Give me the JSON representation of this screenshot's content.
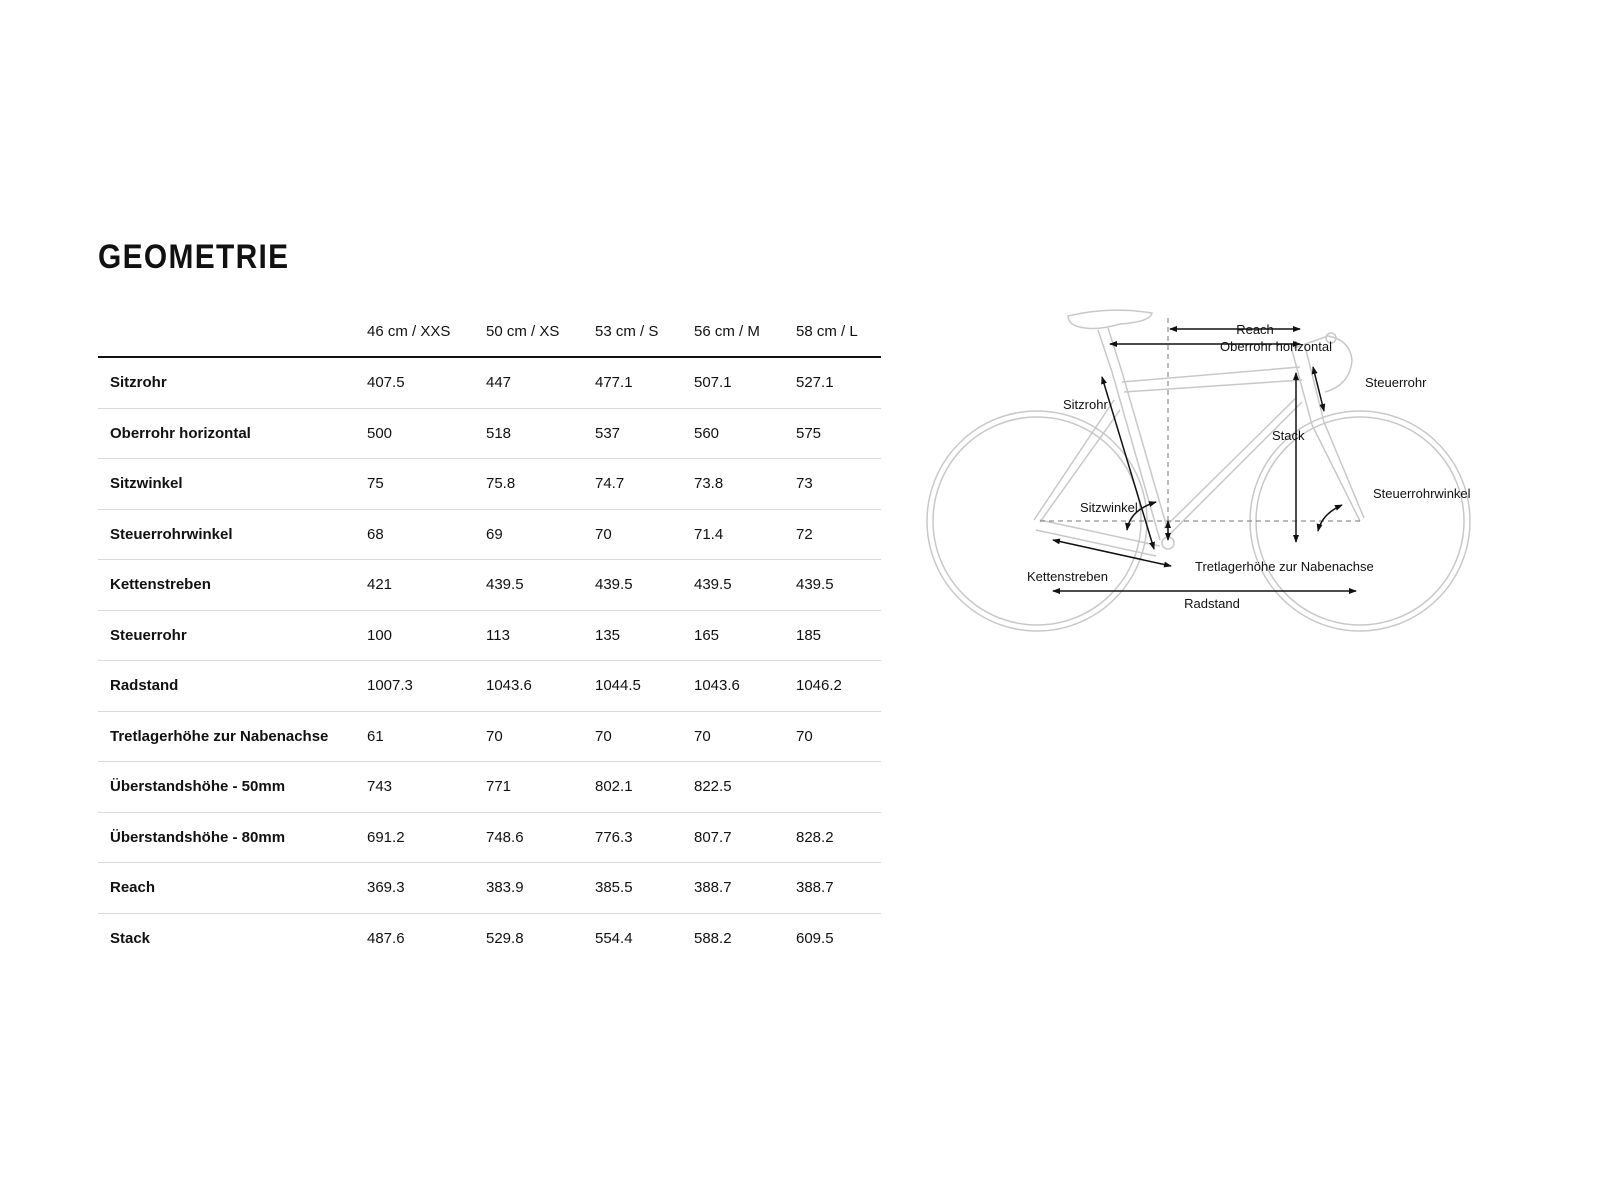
{
  "title": "GEOMETRIE",
  "table": {
    "columns": [
      "46 cm / XXS",
      "50 cm / XS",
      "53 cm / S",
      "56 cm / M",
      "58 cm / L"
    ],
    "rows": [
      {
        "label": "Sitzrohr",
        "values": [
          "407.5",
          "447",
          "477.1",
          "507.1",
          "527.1"
        ]
      },
      {
        "label": "Oberrohr horizontal",
        "values": [
          "500",
          "518",
          "537",
          "560",
          "575"
        ]
      },
      {
        "label": "Sitzwinkel",
        "values": [
          "75",
          "75.8",
          "74.7",
          "73.8",
          "73"
        ]
      },
      {
        "label": "Steuerrohrwinkel",
        "values": [
          "68",
          "69",
          "70",
          "71.4",
          "72"
        ]
      },
      {
        "label": "Kettenstreben",
        "values": [
          "421",
          "439.5",
          "439.5",
          "439.5",
          "439.5"
        ]
      },
      {
        "label": "Steuerrohr",
        "values": [
          "100",
          "113",
          "135",
          "165",
          "185"
        ]
      },
      {
        "label": "Radstand",
        "values": [
          "1007.3",
          "1043.6",
          "1044.5",
          "1043.6",
          "1046.2"
        ]
      },
      {
        "label": "Tretlagerhöhe zur Nabenachse",
        "values": [
          "61",
          "70",
          "70",
          "70",
          "70"
        ]
      },
      {
        "label": "Überstandshöhe - 50mm",
        "values": [
          "743",
          "771",
          "802.1",
          "822.5",
          ""
        ]
      },
      {
        "label": "Überstandshöhe - 80mm",
        "values": [
          "691.2",
          "748.6",
          "776.3",
          "807.7",
          "828.2"
        ]
      },
      {
        "label": "Reach",
        "values": [
          "369.3",
          "383.9",
          "385.5",
          "388.7",
          "388.7"
        ]
      },
      {
        "label": "Stack",
        "values": [
          "487.6",
          "529.8",
          "554.4",
          "588.2",
          "609.5"
        ]
      }
    ]
  },
  "diagram": {
    "frame_color": "#c8c8c8",
    "arrow_color": "#111111",
    "labels": {
      "reach": "Reach",
      "top_tube": "Oberrohr horizontal",
      "head_tube": "Steuerrohr",
      "seat_tube": "Sitzrohr",
      "stack": "Stack",
      "seat_angle": "Sitzwinkel",
      "head_angle": "Steuerrohrwinkel",
      "bb_drop": "Tretlagerhöhe zur Nabenachse",
      "chainstays": "Kettenstreben",
      "wheelbase": "Radstand"
    }
  }
}
